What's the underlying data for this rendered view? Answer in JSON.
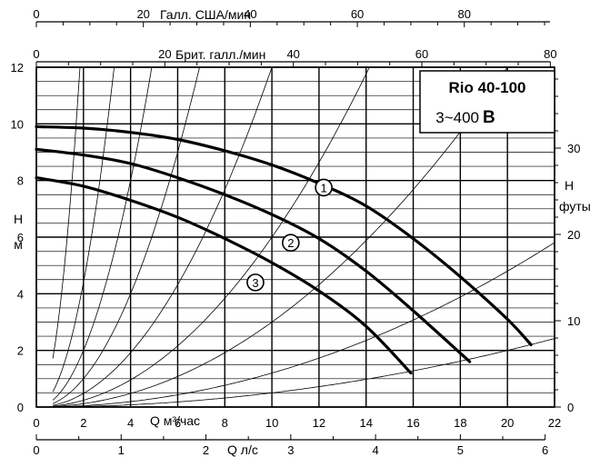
{
  "chart_data": {
    "type": "line",
    "title": "Rio 40-100",
    "subtitle": "3~400",
    "subtitle_suffix": "B",
    "ylabel_left": "H",
    "ylabel_left_unit": "м",
    "ylabel_right": "H",
    "ylabel_right_unit": "футы",
    "xlabel_m3h": "Q м³/час",
    "xlabel_ls": "Q л/с",
    "xlabel_usgpm": "Галл. США/мин",
    "xlabel_impgpm": "Брит. галл./мин",
    "xlim": [
      0,
      22
    ],
    "ylim": [
      0,
      12
    ],
    "grid": true,
    "x_ticks_m3h": [
      "0",
      "2",
      "4",
      "6",
      "8",
      "10",
      "12",
      "14",
      "16",
      "18",
      "20",
      "22"
    ],
    "y_ticks_m": [
      "0",
      "2",
      "4",
      "6",
      "8",
      "10",
      "12"
    ],
    "x_ticks_ls": [
      "0",
      "1",
      "2",
      "3",
      "4",
      "5",
      "6"
    ],
    "x_ticks_usgpm": [
      "0",
      "20",
      "40",
      "60",
      "80"
    ],
    "x_ticks_impgpm": [
      "0",
      "20",
      "40",
      "60",
      "80"
    ],
    "y_ticks_ft": [
      "0",
      "10",
      "20",
      "30"
    ],
    "series": [
      {
        "name": "1",
        "x": [
          0,
          2,
          4,
          6,
          8,
          10,
          12,
          14,
          16,
          18,
          20,
          21
        ],
        "y": [
          9.9,
          9.85,
          9.7,
          9.45,
          9.05,
          8.55,
          7.9,
          7.1,
          5.95,
          4.6,
          3.1,
          2.2
        ]
      },
      {
        "name": "2",
        "x": [
          0,
          2,
          4,
          6,
          8,
          10,
          12,
          14,
          16,
          18.4
        ],
        "y": [
          9.1,
          8.9,
          8.6,
          8.1,
          7.5,
          6.8,
          5.95,
          4.8,
          3.4,
          1.6
        ]
      },
      {
        "name": "3",
        "x": [
          0,
          2,
          4,
          6,
          8,
          10,
          12,
          14,
          15.9
        ],
        "y": [
          8.1,
          7.8,
          7.3,
          6.7,
          5.95,
          5.1,
          4.1,
          2.85,
          1.2
        ]
      }
    ],
    "marker_points": [
      {
        "label": "1",
        "x": 12.2,
        "y": 7.75
      },
      {
        "label": "2",
        "x": 10.8,
        "y": 5.8
      },
      {
        "label": "3",
        "x": 9.3,
        "y": 4.4
      }
    ],
    "system_curve_k": [
      3.5,
      1.1,
      0.5,
      0.25,
      0.12,
      0.06,
      0.03,
      0.012,
      0.005
    ]
  }
}
